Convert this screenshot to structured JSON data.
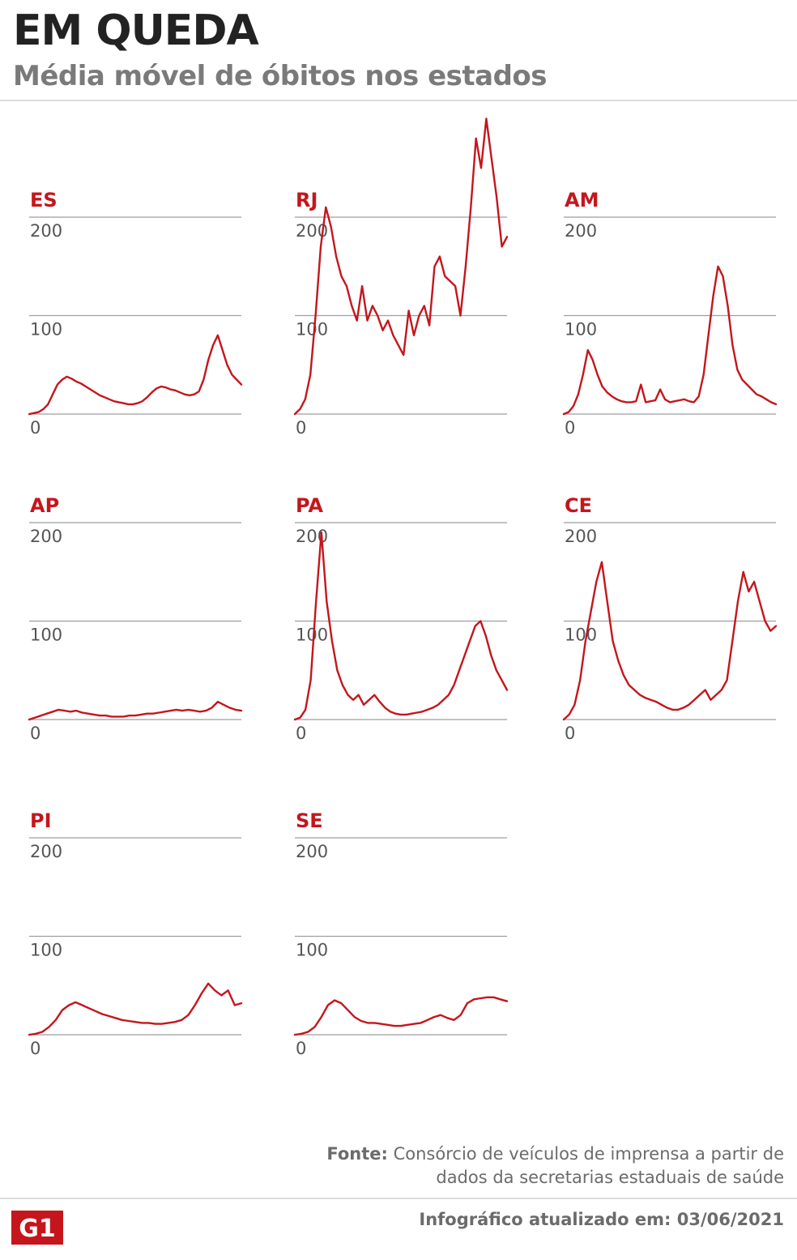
{
  "header": {
    "title": "EM QUEDA",
    "subtitle": "Média móvel de óbitos nos estados"
  },
  "footer": {
    "source_label": "Fonte:",
    "source_text": "Consórcio de veículos de imprensa a partir de dados da secretarias estaduais de saúde",
    "updated": "Infográfico atualizado em: 03/06/2021",
    "logo_text": "G1"
  },
  "colors": {
    "line": "#c4161c",
    "label": "#c4161c",
    "grid": "#9e9e9e",
    "tick": "#555555",
    "title": "#222222"
  },
  "chart_data": [
    {
      "type": "line",
      "title": "ES",
      "ylim": [
        0,
        200
      ],
      "yticks": [
        0,
        100,
        200
      ],
      "series": [
        {
          "values": [
            0,
            1,
            2,
            5,
            10,
            20,
            30,
            35,
            38,
            36,
            33,
            31,
            28,
            25,
            22,
            19,
            17,
            15,
            13,
            12,
            11,
            10,
            10,
            11,
            13,
            17,
            22,
            26,
            28,
            27,
            25,
            24,
            22,
            20,
            19,
            20,
            23,
            35,
            55,
            70,
            80,
            65,
            50,
            40,
            35,
            30
          ]
        }
      ]
    },
    {
      "type": "line",
      "title": "RJ",
      "ylim": [
        0,
        200
      ],
      "yticks": [
        0,
        100,
        200
      ],
      "series": [
        {
          "values": [
            0,
            5,
            15,
            40,
            100,
            170,
            210,
            190,
            160,
            140,
            130,
            110,
            95,
            130,
            95,
            110,
            100,
            85,
            95,
            80,
            70,
            60,
            105,
            80,
            100,
            110,
            90,
            150,
            160,
            140,
            135,
            130,
            100,
            150,
            210,
            280,
            250,
            300,
            260,
            220,
            170,
            180
          ]
        }
      ]
    },
    {
      "type": "line",
      "title": "AM",
      "ylim": [
        0,
        200
      ],
      "yticks": [
        0,
        100,
        200
      ],
      "series": [
        {
          "values": [
            0,
            2,
            8,
            20,
            40,
            65,
            55,
            40,
            28,
            22,
            18,
            15,
            13,
            12,
            12,
            13,
            30,
            12,
            13,
            14,
            25,
            15,
            12,
            13,
            14,
            15,
            13,
            12,
            18,
            40,
            80,
            120,
            150,
            140,
            110,
            70,
            45,
            35,
            30,
            25,
            20,
            18,
            15,
            12,
            10
          ]
        }
      ]
    },
    {
      "type": "line",
      "title": "AP",
      "ylim": [
        0,
        200
      ],
      "yticks": [
        0,
        100,
        200
      ],
      "series": [
        {
          "values": [
            0,
            2,
            4,
            6,
            8,
            10,
            9,
            8,
            9,
            7,
            6,
            5,
            4,
            4,
            3,
            3,
            3,
            4,
            4,
            5,
            6,
            6,
            7,
            8,
            9,
            10,
            9,
            10,
            9,
            8,
            9,
            12,
            18,
            15,
            12,
            10,
            9
          ]
        }
      ]
    },
    {
      "type": "line",
      "title": "PA",
      "ylim": [
        0,
        200
      ],
      "yticks": [
        0,
        100,
        200
      ],
      "series": [
        {
          "values": [
            0,
            2,
            10,
            40,
            120,
            190,
            120,
            80,
            50,
            35,
            25,
            20,
            25,
            15,
            20,
            25,
            18,
            12,
            8,
            6,
            5,
            5,
            6,
            7,
            8,
            10,
            12,
            15,
            20,
            25,
            35,
            50,
            65,
            80,
            95,
            100,
            85,
            65,
            50,
            40,
            30
          ]
        }
      ]
    },
    {
      "type": "line",
      "title": "CE",
      "ylim": [
        0,
        200
      ],
      "yticks": [
        0,
        100,
        200
      ],
      "series": [
        {
          "values": [
            0,
            5,
            15,
            40,
            80,
            110,
            140,
            160,
            120,
            80,
            60,
            45,
            35,
            30,
            25,
            22,
            20,
            18,
            15,
            12,
            10,
            10,
            12,
            15,
            20,
            25,
            30,
            20,
            25,
            30,
            40,
            80,
            120,
            150,
            130,
            140,
            120,
            100,
            90,
            95
          ]
        }
      ]
    },
    {
      "type": "line",
      "title": "PI",
      "ylim": [
        0,
        200
      ],
      "yticks": [
        0,
        100,
        200
      ],
      "series": [
        {
          "values": [
            0,
            1,
            3,
            8,
            15,
            25,
            30,
            33,
            30,
            27,
            24,
            21,
            19,
            17,
            15,
            14,
            13,
            12,
            12,
            11,
            11,
            12,
            13,
            15,
            20,
            30,
            42,
            52,
            45,
            40,
            45,
            30,
            32
          ]
        }
      ]
    },
    {
      "type": "line",
      "title": "SE",
      "ylim": [
        0,
        200
      ],
      "yticks": [
        0,
        100,
        200
      ],
      "series": [
        {
          "values": [
            0,
            1,
            3,
            8,
            18,
            30,
            35,
            32,
            25,
            18,
            14,
            12,
            12,
            11,
            10,
            9,
            9,
            10,
            11,
            12,
            15,
            18,
            20,
            17,
            15,
            20,
            32,
            36,
            37,
            38,
            38,
            36,
            34
          ]
        }
      ]
    }
  ]
}
